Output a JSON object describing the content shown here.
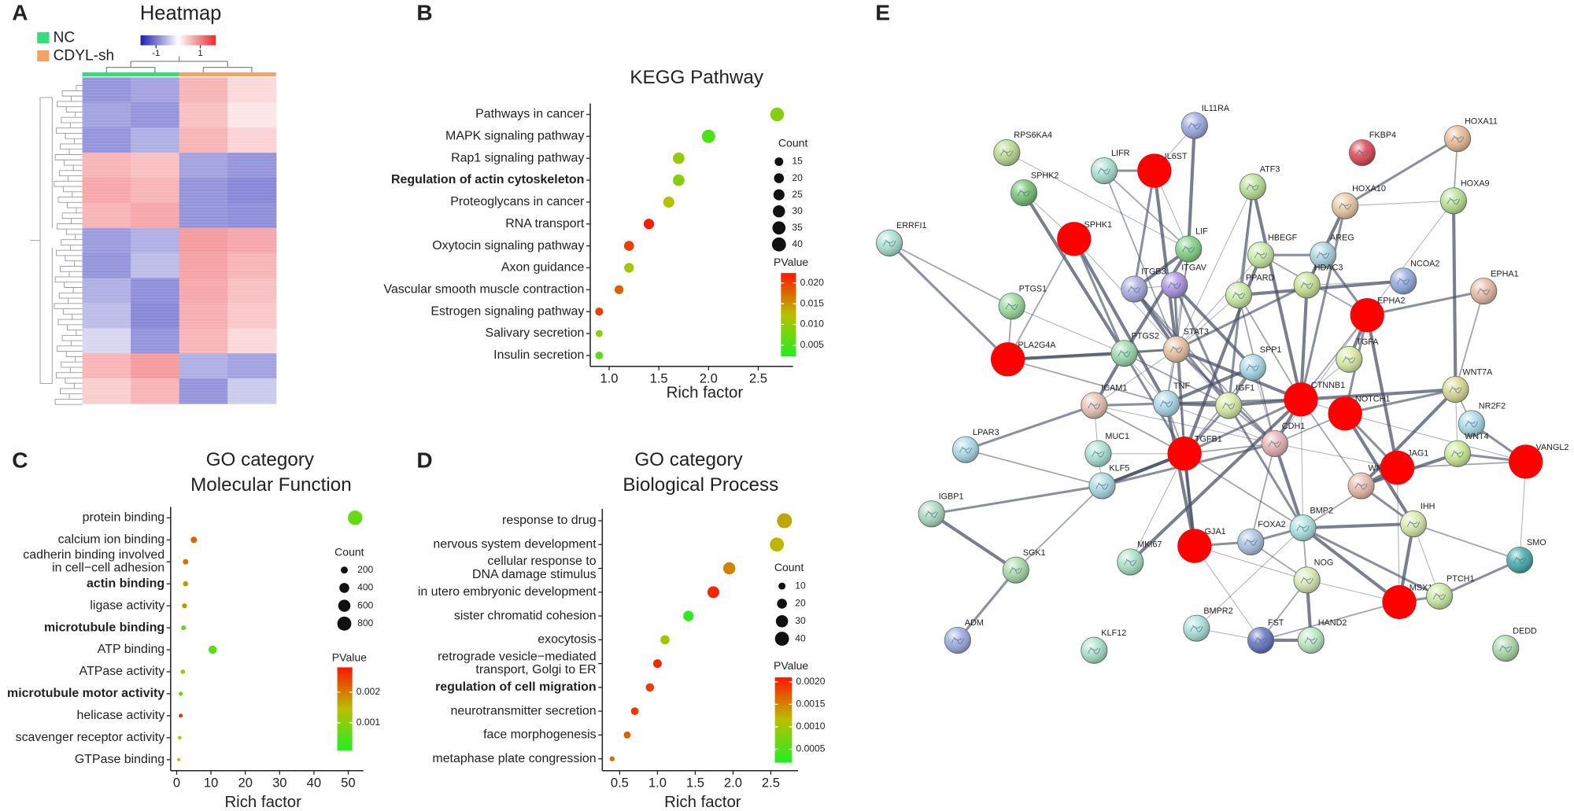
{
  "chart_data": [
    {
      "type": "heatmap",
      "panel": "A",
      "title": "Heatmap",
      "groups": [
        {
          "name": "NC",
          "color": "#33dd77"
        },
        {
          "name": "CDYL-sh",
          "color": "#f2a466"
        }
      ],
      "matrix": [
        [
          -0.8,
          -0.7,
          0.6,
          0.3
        ],
        [
          -0.7,
          -0.8,
          0.5,
          0.2
        ],
        [
          -0.8,
          -0.6,
          0.6,
          0.35
        ],
        [
          0.6,
          0.5,
          -0.7,
          -0.8
        ],
        [
          0.7,
          0.6,
          -0.8,
          -0.9
        ],
        [
          0.6,
          0.7,
          -0.8,
          -0.85
        ],
        [
          -0.75,
          -0.6,
          0.8,
          0.7
        ],
        [
          -0.8,
          -0.5,
          0.75,
          0.6
        ],
        [
          -0.6,
          -0.85,
          0.7,
          0.5
        ],
        [
          -0.5,
          -0.9,
          0.65,
          0.45
        ],
        [
          -0.3,
          -0.8,
          0.6,
          0.3
        ],
        [
          0.6,
          0.8,
          -0.6,
          -0.7
        ],
        [
          0.4,
          0.6,
          -0.8,
          -0.4
        ]
      ],
      "zlim": [
        -1.7,
        1.7
      ],
      "zticks": [
        -1,
        1
      ],
      "low_color": "#1c1cb4",
      "mid_color": "#ffffff",
      "high_color": "#ea2a30"
    },
    {
      "type": "dot",
      "panel": "B",
      "title": "KEGG Pathway",
      "xlabel": "Rich factor",
      "categories": [
        "Pathways in cancer",
        "MAPK signaling pathway",
        "Rap1 signaling pathway",
        "Regulation of actin cytoskeleton",
        "Proteoglycans in cancer",
        "RNA transport",
        "Oxytocin signaling pathway",
        "Axon guidance",
        "Vascular smooth muscle contraction",
        "Estrogen signaling pathway",
        "Salivary secretion",
        "Insulin secretion"
      ],
      "x": [
        2.69,
        2.0,
        1.7,
        1.7,
        1.6,
        1.4,
        1.2,
        1.2,
        1.1,
        0.9,
        0.9,
        0.9
      ],
      "count": [
        38,
        36,
        27,
        27,
        25,
        22,
        20,
        19,
        16,
        13,
        10,
        12
      ],
      "pvalue": [
        0.009,
        0.005,
        0.01,
        0.009,
        0.012,
        0.022,
        0.02,
        0.011,
        0.018,
        0.02,
        0.01,
        0.006
      ],
      "highlighted": [
        3
      ],
      "xlim": [
        0.81,
        2.85
      ],
      "xticks": [
        {
          "value": 1,
          "label": "1.0"
        },
        1.5,
        {
          "value": 2,
          "label": "2.0"
        },
        2.5
      ],
      "size_title": "Count",
      "size_ticks": [
        15,
        20,
        25,
        30,
        35,
        40
      ],
      "color_title": "PValue",
      "color_lim": [
        0.0023,
        0.0224
      ],
      "color_ticks": [
        0.005,
        {
          "value": 0.01,
          "label": "0.010"
        },
        0.015,
        {
          "value": 0.02,
          "label": "0.020"
        }
      ],
      "colors": [
        "#22ee22",
        "#b8c000",
        "#ff1500"
      ]
    },
    {
      "type": "dot",
      "panel": "C",
      "title": "GO category",
      "subtitle": "Molecular Function",
      "xlabel": "Rich factor",
      "categories": [
        "protein binding",
        "calcium ion binding",
        "cadherin binding involved\nin cell−cell adhesion",
        "actin binding",
        "ligase activity",
        "microtubule binding",
        "ATP binding",
        "ATPase activity",
        "microtubule motor activity",
        "helicase activity",
        "scavenger receptor activity",
        "GTPase binding"
      ],
      "x": [
        52,
        5,
        2.6,
        2.6,
        2.3,
        2,
        10.5,
        1.8,
        1.2,
        1.2,
        0.9,
        0.6
      ],
      "count": [
        850,
        160,
        120,
        110,
        100,
        90,
        280,
        80,
        70,
        60,
        50,
        40
      ],
      "pvalue": [
        0.0007,
        0.0022,
        0.0021,
        0.0018,
        0.0018,
        0.0006,
        0.0006,
        0.0011,
        0.0007,
        0.0027,
        0.0014,
        0.0014
      ],
      "highlighted": [
        3,
        5,
        8
      ],
      "xlim": [
        -1.75,
        54.4
      ],
      "xticks": [
        0,
        10,
        20,
        30,
        40,
        50
      ],
      "size_title": "Count",
      "size_ticks": [
        200,
        400,
        600,
        800
      ],
      "color_title": "PValue",
      "color_lim": [
        0.0001,
        0.0028
      ],
      "color_ticks": [
        0.001,
        0.002
      ],
      "colors": [
        "#22ee22",
        "#b8c000",
        "#ff1500"
      ]
    },
    {
      "type": "dot",
      "panel": "D",
      "title": "GO category",
      "subtitle": "Biological Process",
      "xlabel": "Rich factor",
      "categories": [
        "response to drug",
        "nervous system development",
        "cellular response to\nDNA damage stimulus",
        "in utero embryonic development",
        "sister chromatid cohesion",
        "exocytosis",
        "retrograde vesicle−mediated\ntransport, Golgi to ER",
        "regulation of cell migration",
        "neurotransmitter secretion",
        "face morphogenesis",
        "metaphase plate congression"
      ],
      "x": [
        2.68,
        2.58,
        1.95,
        1.74,
        1.41,
        1.1,
        1.0,
        0.9,
        0.7,
        0.6,
        0.4
      ],
      "count": [
        45,
        40,
        30,
        28,
        22,
        17,
        15,
        14,
        12,
        10,
        5
      ],
      "pvalue": [
        0.0013,
        0.0012,
        0.0015,
        0.002,
        0.0003,
        0.001,
        0.002,
        0.0019,
        0.0019,
        0.0017,
        0.0016
      ],
      "highlighted": [
        7
      ],
      "xlim": [
        0.27,
        2.86
      ],
      "xticks": [
        0.5,
        {
          "value": 1,
          "label": "1.0"
        },
        1.5,
        {
          "value": 2,
          "label": "2.0"
        },
        2.5
      ],
      "size_title": "Count",
      "size_ticks": [
        10,
        20,
        30,
        40
      ],
      "color_title": "PValue",
      "color_lim": [
        0.0002,
        0.0021
      ],
      "color_ticks": [
        0.0005,
        {
          "value": 0.001,
          "label": "0.0010"
        },
        0.0015,
        {
          "value": 0.002,
          "label": "0.0020"
        }
      ],
      "colors": [
        "#22ee22",
        "#b8c000",
        "#ff1500"
      ]
    },
    {
      "type": "network",
      "panel": "E",
      "nodes": [
        {
          "label": "IL11RA",
          "color": "#9aa8e0"
        },
        {
          "label": "RPS6KA4",
          "color": "#b8d88a"
        },
        {
          "label": "FKBP4",
          "color": "#e04050"
        },
        {
          "label": "HOXA11",
          "color": "#e8b890"
        },
        {
          "label": "LIFR",
          "color": "#a8e0d0"
        },
        {
          "label": "IL6ST",
          "color": "#ff0000"
        },
        {
          "label": "ATF3",
          "color": "#b8e090"
        },
        {
          "label": "SPHK2",
          "color": "#70c070"
        },
        {
          "label": "HOXA10",
          "color": "#e8c8a0"
        },
        {
          "label": "HOXA9",
          "color": "#b8e090"
        },
        {
          "label": "ERRFI1",
          "color": "#a8e0d0"
        },
        {
          "label": "SPHK1",
          "color": "#ff0000"
        },
        {
          "label": "LIF",
          "color": "#80d080"
        },
        {
          "label": "HBEGF",
          "color": "#c8e8a0"
        },
        {
          "label": "AREG",
          "color": "#a8d0e0"
        },
        {
          "label": "NCOA2",
          "color": "#90a8e0"
        },
        {
          "label": "EPHA1",
          "color": "#e8b8a0"
        },
        {
          "label": "ITGB3",
          "color": "#a8a8e0"
        },
        {
          "label": "ITGAV",
          "color": "#a890e0"
        },
        {
          "label": "PPARD",
          "color": "#c8e8a0"
        },
        {
          "label": "HDAC3",
          "color": "#c8e090"
        },
        {
          "label": "PTGS1",
          "color": "#98d898"
        },
        {
          "label": "EPHA2",
          "color": "#ff0000"
        },
        {
          "label": "PLA2G4A",
          "color": "#ff0000"
        },
        {
          "label": "PTGS2",
          "color": "#98d8a8"
        },
        {
          "label": "STAT3",
          "color": "#e8c0a0"
        },
        {
          "label": "SPP1",
          "color": "#a8d8e8"
        },
        {
          "label": "TGFA",
          "color": "#d8e8a0"
        },
        {
          "label": "ICAM1",
          "color": "#e8c0b0"
        },
        {
          "label": "TNF",
          "color": "#a8d8e8"
        },
        {
          "label": "IGF1",
          "color": "#d8e8a0"
        },
        {
          "label": "CTNNB1",
          "color": "#ff0000"
        },
        {
          "label": "NOTCH1",
          "color": "#ff0000"
        },
        {
          "label": "WNT7A",
          "color": "#d8d890"
        },
        {
          "label": "NR2F2",
          "color": "#a8d8e8"
        },
        {
          "label": "CDH1",
          "color": "#e8b0b0"
        },
        {
          "label": "LPAR3",
          "color": "#a8d8e8"
        },
        {
          "label": "TGFB1",
          "color": "#ff0000"
        },
        {
          "label": "MUC1",
          "color": "#a8e0d0"
        },
        {
          "label": "WNT4",
          "color": "#c8e890"
        },
        {
          "label": "VANGL2",
          "color": "#ff0000"
        },
        {
          "label": "KLF5",
          "color": "#a8d8e0"
        },
        {
          "label": "WN",
          "color": "#e8b8a8"
        },
        {
          "label": "JAG1",
          "color": "#ff0000"
        },
        {
          "label": "IGBP1",
          "color": "#a8d8c0"
        },
        {
          "label": "IHH",
          "color": "#d8e8a8"
        },
        {
          "label": "BMP2",
          "color": "#a8e0e0"
        },
        {
          "label": "FOXA2",
          "color": "#a8c0e0"
        },
        {
          "label": "GJA1",
          "color": "#ff0000"
        },
        {
          "label": "SGK1",
          "color": "#a8d8a8"
        },
        {
          "label": "MKI67",
          "color": "#a8e0c8"
        },
        {
          "label": "SMO",
          "color": "#40a8a8"
        },
        {
          "label": "NOG",
          "color": "#d8e8b0"
        },
        {
          "label": "MSX1",
          "color": "#ff0000"
        },
        {
          "label": "PTCH1",
          "color": "#c8e8a0"
        },
        {
          "label": "BMPR2",
          "color": "#a8e0d8"
        },
        {
          "label": "FST",
          "color": "#6070c0"
        },
        {
          "label": "HAND2",
          "color": "#b8e8c0"
        },
        {
          "label": "ADM",
          "color": "#9aa8e0"
        },
        {
          "label": "KLF12",
          "color": "#a8e0c8"
        },
        {
          "label": "DEDD",
          "color": "#a8d8a8"
        }
      ]
    }
  ]
}
